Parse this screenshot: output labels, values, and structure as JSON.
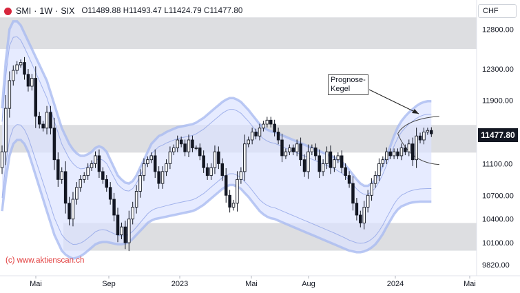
{
  "header": {
    "symbol": "SMI",
    "interval": "1W",
    "exchange": "SIX",
    "separator": "·",
    "ohlc": "O11489.88 H11493.47 L11424.79 C11477.80"
  },
  "currency_button": "CHF",
  "last_price_label": "11477.80",
  "annotation": "Prognose-Kegel",
  "watermark": "(c) www.aktienscan.ch",
  "colors": {
    "up": "#131722",
    "down": "#131722",
    "band_fill": "#dbe3ff",
    "band_line": "#a6b8f0",
    "zone": "#c8c9ce",
    "logo": "#d7263d"
  },
  "chart_data": {
    "type": "candlestick",
    "title": "SMI · 1W · SIX",
    "ylim": [
      9700,
      13100
    ],
    "yticks": [
      9820,
      10100,
      10400,
      10700,
      11100,
      11500,
      11900,
      12300,
      12800
    ],
    "ytick_labels": [
      "9820.00",
      "10100.00",
      "10400.00",
      "10700.00",
      "11100.00",
      "11500.00",
      "11900.00",
      "12300.00",
      "12800.00"
    ],
    "xtick_labels": [
      "Mai",
      "Sep",
      "2023",
      "Mai",
      "Aug",
      "2024",
      "Mai"
    ],
    "zones": [
      {
        "from": 12550,
        "to": 12950
      },
      {
        "from": 11240,
        "to": 11590
      },
      {
        "from": 10000,
        "to": 10350
      }
    ],
    "close": [
      11250,
      11800,
      12150,
      12280,
      12350,
      12380,
      12230,
      12080,
      12180,
      11700,
      11600,
      11550,
      11750,
      11550,
      11150,
      10900,
      11000,
      10600,
      10400,
      10650,
      10800,
      10900,
      10950,
      11050,
      11100,
      11200,
      11000,
      10900,
      10800,
      10650,
      10450,
      10200,
      10300,
      10100,
      10400,
      10550,
      10750,
      10950,
      11100,
      11150,
      11200,
      11000,
      10850,
      11000,
      11100,
      11250,
      11300,
      11400,
      11350,
      11250,
      11400,
      11300,
      11300,
      11200,
      11050,
      10950,
      11050,
      11250,
      11100,
      10950,
      10700,
      10550,
      10600,
      10900,
      11000,
      11350,
      11400,
      11500,
      11450,
      11550,
      11600,
      11650,
      11600,
      11500,
      11400,
      11200,
      11250,
      11300,
      11250,
      11350,
      11150,
      11000,
      11250,
      11300,
      11200,
      11000,
      11100,
      11250,
      11050,
      11150,
      11200,
      11050,
      10950,
      10850,
      10600,
      10450,
      10350,
      10550,
      10700,
      10850,
      10950,
      11100,
      11150,
      11250,
      11200,
      11250,
      11200,
      11300,
      11250,
      11350,
      11150,
      11450,
      11400,
      11500,
      11520,
      11478
    ],
    "band_upper": [
      11800,
      12400,
      12800,
      12900,
      12900,
      12850,
      12750,
      12650,
      12550,
      12450,
      12350,
      12250,
      12150,
      12000,
      11850,
      11700,
      11550,
      11450,
      11350,
      11280,
      11230,
      11200,
      11200,
      11220,
      11250,
      11300,
      11320,
      11300,
      11250,
      11150,
      11050,
      10950,
      10900,
      10860,
      10850,
      10880,
      10950,
      11050,
      11150,
      11250,
      11350,
      11400,
      11450,
      11470,
      11500,
      11520,
      11540,
      11560,
      11570,
      11580,
      11590,
      11600,
      11620,
      11650,
      11680,
      11720,
      11760,
      11800,
      11840,
      11880,
      11910,
      11930,
      11930,
      11910,
      11880,
      11830,
      11780,
      11720,
      11660,
      11600,
      11560,
      11530,
      11510,
      11500,
      11480,
      11460,
      11440,
      11420,
      11400,
      11380,
      11360,
      11340,
      11320,
      11300,
      11280,
      11260,
      11240,
      11220,
      11200,
      11180,
      11150,
      11120,
      11080,
      11020,
      10960,
      10900,
      10850,
      10820,
      10820,
      10850,
      10900,
      10980,
      11080,
      11200,
      11320,
      11450,
      11560,
      11640,
      11700,
      11750,
      11790,
      11830,
      11860,
      11880,
      11890,
      11890
    ],
    "band_lower": [
      10500,
      10900,
      11200,
      11350,
      11400,
      11400,
      11350,
      11250,
      11100,
      10950,
      10800,
      10650,
      10500,
      10350,
      10200,
      10100,
      10000,
      9950,
      9920,
      9900,
      9910,
      9930,
      9960,
      10000,
      10040,
      10080,
      10100,
      10110,
      10110,
      10100,
      10090,
      10080,
      10080,
      10090,
      10110,
      10150,
      10200,
      10250,
      10300,
      10350,
      10380,
      10400,
      10410,
      10420,
      10430,
      10440,
      10450,
      10460,
      10470,
      10480,
      10490,
      10500,
      10520,
      10550,
      10580,
      10620,
      10660,
      10700,
      10740,
      10780,
      10810,
      10830,
      10830,
      10810,
      10780,
      10730,
      10680,
      10620,
      10560,
      10500,
      10460,
      10430,
      10410,
      10400,
      10380,
      10360,
      10340,
      10320,
      10300,
      10280,
      10260,
      10240,
      10220,
      10200,
      10180,
      10160,
      10140,
      10120,
      10100,
      10080,
      10060,
      10040,
      10020,
      10000,
      9990,
      9980,
      9980,
      9990,
      10010,
      10040,
      10080,
      10140,
      10210,
      10300,
      10380,
      10460,
      10520,
      10560,
      10580,
      10600,
      10610,
      10615,
      10620,
      10620,
      10620,
      10620
    ],
    "cone": {
      "start_index": 106,
      "start_value": 11480,
      "end_index": 116,
      "upper_end": 11700,
      "lower_end": 11090
    }
  }
}
